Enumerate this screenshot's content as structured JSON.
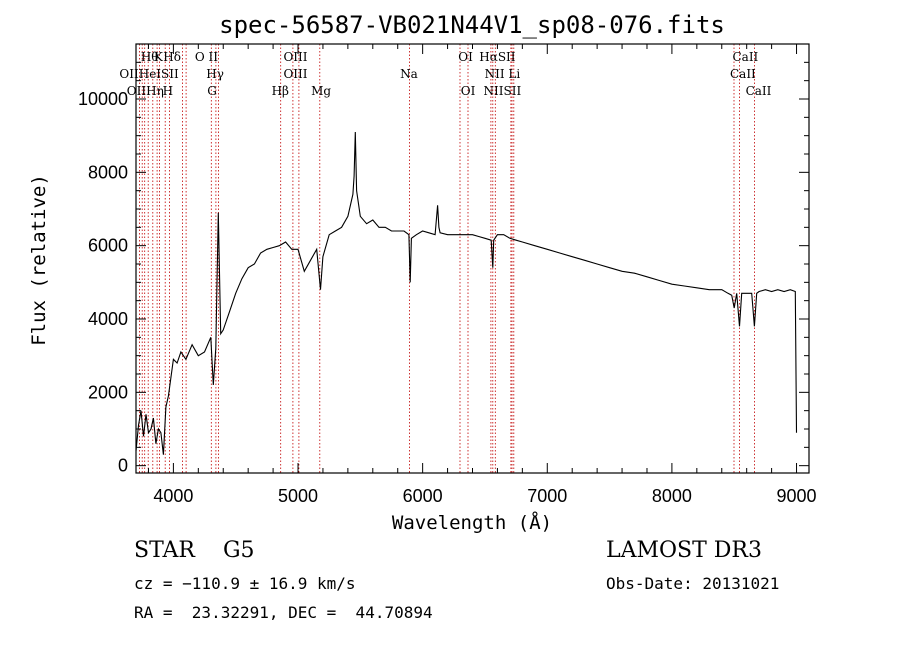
{
  "chart_data": {
    "type": "line",
    "title": "spec-56587-VB021N44V1_sp08-076.fits",
    "xlabel": "Wavelength (Å)",
    "ylabel": "Flux (relative)",
    "xlim": [
      3700,
      9100
    ],
    "ylim": [
      -200,
      11500
    ],
    "xticks": [
      4000,
      5000,
      6000,
      7000,
      8000,
      9000
    ],
    "yticks": [
      0,
      2000,
      4000,
      6000,
      8000,
      10000
    ],
    "series": [
      {
        "name": "flux",
        "x": [
          3700,
          3720,
          3740,
          3760,
          3780,
          3800,
          3820,
          3840,
          3860,
          3880,
          3900,
          3920,
          3940,
          3960,
          3980,
          4000,
          4030,
          4060,
          4100,
          4150,
          4200,
          4250,
          4300,
          4320,
          4340,
          4360,
          4380,
          4400,
          4450,
          4500,
          4550,
          4600,
          4650,
          4700,
          4750,
          4800,
          4850,
          4900,
          4950,
          5000,
          5050,
          5100,
          5150,
          5180,
          5200,
          5250,
          5300,
          5350,
          5400,
          5440,
          5450,
          5460,
          5470,
          5500,
          5550,
          5600,
          5650,
          5700,
          5750,
          5800,
          5850,
          5890,
          5900,
          5910,
          5950,
          6000,
          6050,
          6100,
          6120,
          6130,
          6140,
          6200,
          6250,
          6300,
          6350,
          6400,
          6450,
          6500,
          6550,
          6563,
          6570,
          6600,
          6650,
          6700,
          6750,
          6800,
          6900,
          7000,
          7100,
          7200,
          7300,
          7400,
          7500,
          7600,
          7700,
          7800,
          7900,
          8000,
          8100,
          8200,
          8300,
          8400,
          8450,
          8480,
          8500,
          8520,
          8542,
          8560,
          8600,
          8640,
          8662,
          8680,
          8700,
          8750,
          8800,
          8850,
          8900,
          8950,
          8990,
          9000
        ],
        "values": [
          400,
          1100,
          1500,
          800,
          1400,
          900,
          1000,
          1300,
          600,
          1000,
          900,
          300,
          1600,
          1900,
          2400,
          2900,
          2800,
          3100,
          2900,
          3300,
          3000,
          3100,
          3500,
          2200,
          3200,
          6900,
          3600,
          3700,
          4200,
          4700,
          5100,
          5400,
          5500,
          5800,
          5900,
          5950,
          6000,
          6100,
          5900,
          5900,
          5300,
          5600,
          5900,
          4800,
          5700,
          6300,
          6400,
          6500,
          6800,
          7400,
          7900,
          9100,
          7500,
          6800,
          6600,
          6700,
          6500,
          6500,
          6400,
          6400,
          6400,
          6300,
          5000,
          6200,
          6300,
          6400,
          6350,
          6300,
          7100,
          6500,
          6350,
          6300,
          6300,
          6300,
          6300,
          6300,
          6250,
          6200,
          6150,
          5400,
          6150,
          6300,
          6300,
          6200,
          6150,
          6100,
          6000,
          5900,
          5800,
          5700,
          5600,
          5500,
          5400,
          5300,
          5250,
          5150,
          5050,
          4950,
          4900,
          4850,
          4800,
          4800,
          4700,
          4650,
          4300,
          4700,
          3800,
          4700,
          4700,
          4700,
          3800,
          4700,
          4750,
          4800,
          4750,
          4800,
          4750,
          4800,
          4750,
          900
        ]
      }
    ],
    "lines": [
      {
        "wl": 3727,
        "label": "OII"
      },
      {
        "wl": 3750,
        "label": "OII"
      },
      {
        "wl": 3770,
        "label": "Hθ"
      },
      {
        "wl": 3798,
        "label": "Hθ"
      },
      {
        "wl": 3835,
        "label": "Hη"
      },
      {
        "wl": 3869,
        "label": "HeI"
      },
      {
        "wl": 3889,
        "label": "HeI"
      },
      {
        "wl": 3934,
        "label": "K"
      },
      {
        "wl": 3969,
        "label": "H"
      },
      {
        "wl": 4072,
        "label": "SII"
      },
      {
        "wl": 4102,
        "label": "Hδ"
      },
      {
        "wl": 4304,
        "label": "G"
      },
      {
        "wl": 4341,
        "label": "Hγ"
      },
      {
        "wl": 4363,
        "label": "OIII"
      },
      {
        "wl": 4861,
        "label": "Hβ"
      },
      {
        "wl": 4959,
        "label": "OIII"
      },
      {
        "wl": 5007,
        "label": "OIII"
      },
      {
        "wl": 5175,
        "label": "Mg"
      },
      {
        "wl": 5894,
        "label": "Na"
      },
      {
        "wl": 6300,
        "label": "OI"
      },
      {
        "wl": 6364,
        "label": "OI"
      },
      {
        "wl": 6548,
        "label": "NII"
      },
      {
        "wl": 6563,
        "label": "Hα"
      },
      {
        "wl": 6583,
        "label": "NII"
      },
      {
        "wl": 6708,
        "label": "Li"
      },
      {
        "wl": 6717,
        "label": "SII"
      },
      {
        "wl": 6731,
        "label": "SII"
      },
      {
        "wl": 8498,
        "label": "CaII"
      },
      {
        "wl": 8542,
        "label": "CaII"
      },
      {
        "wl": 8662,
        "label": "CaII"
      }
    ],
    "top_labels": [
      {
        "x": 3810,
        "row": 0,
        "text": "Hθ"
      },
      {
        "x": 3880,
        "row": 0,
        "text": "K"
      },
      {
        "x": 3990,
        "row": 0,
        "text": "Hδ"
      },
      {
        "x": 4265,
        "row": 0,
        "text": "O II"
      },
      {
        "x": 4980,
        "row": 0,
        "text": "OIII"
      },
      {
        "x": 6345,
        "row": 0,
        "text": "OI"
      },
      {
        "x": 6600,
        "row": 0,
        "text": "HαSII"
      },
      {
        "x": 8590,
        "row": 0,
        "text": "CaII"
      },
      {
        "x": 3805,
        "row": 1,
        "text": "OIIHeISII"
      },
      {
        "x": 4335,
        "row": 1,
        "text": "Hγ"
      },
      {
        "x": 4980,
        "row": 1,
        "text": "OIII"
      },
      {
        "x": 5890,
        "row": 1,
        "text": "Na"
      },
      {
        "x": 6640,
        "row": 1,
        "text": "NII Li"
      },
      {
        "x": 8570,
        "row": 1,
        "text": "CaII"
      },
      {
        "x": 3775,
        "row": 2,
        "text": "OIIHη"
      },
      {
        "x": 3955,
        "row": 2,
        "text": "H"
      },
      {
        "x": 4310,
        "row": 2,
        "text": "G"
      },
      {
        "x": 4858,
        "row": 2,
        "text": "Hβ"
      },
      {
        "x": 5185,
        "row": 2,
        "text": "Mg"
      },
      {
        "x": 6365,
        "row": 2,
        "text": "OI"
      },
      {
        "x": 6640,
        "row": 2,
        "text": "NIISII"
      },
      {
        "x": 8695,
        "row": 2,
        "text": "CaII"
      }
    ]
  },
  "info": {
    "classification": "STAR    G5",
    "survey": "LAMOST DR3",
    "cz": "cz = −110.9 ± 16.9 km/s",
    "obs_date": "Obs-Date: 20131021",
    "coords": "RA =  23.32291, DEC =  44.70894"
  },
  "colors": {
    "line_marker": "#c00000",
    "spectrum": "#000000"
  }
}
